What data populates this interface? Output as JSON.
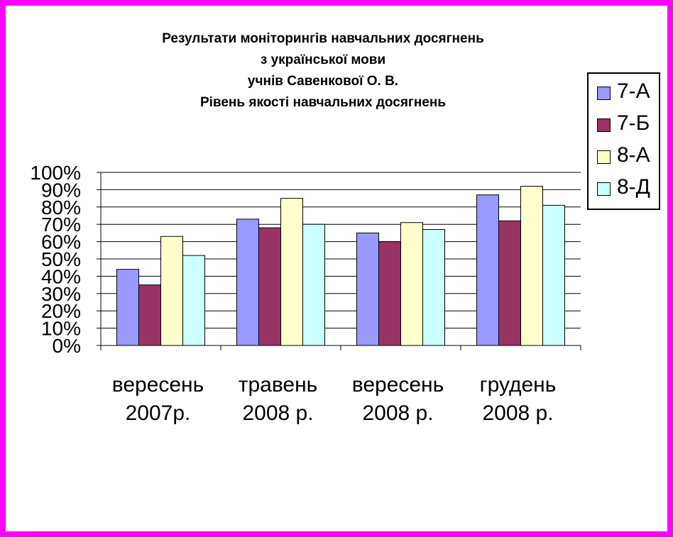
{
  "title_lines": [
    "Результати моніторингів навчальних досягнень",
    "з української мови",
    "учнів Савенкової О. В.",
    "Рівень якості навчальних досягнень"
  ],
  "chart_data": {
    "type": "bar",
    "title": "Результати моніторингів навчальних досягнень з української мови учнів Савенкової О. В. Рівень якості навчальних досягнень",
    "categories": [
      [
        "вересень",
        "2007р."
      ],
      [
        "травень",
        "2008 р."
      ],
      [
        "вересень",
        "2008 р."
      ],
      [
        "грудень",
        "2008 р."
      ]
    ],
    "series": [
      {
        "name": "7-А",
        "color": "#9999ff",
        "values": [
          44,
          73,
          65,
          87
        ]
      },
      {
        "name": "7-Б",
        "color": "#993366",
        "values": [
          35,
          68,
          60,
          72
        ]
      },
      {
        "name": "8-А",
        "color": "#ffffcc",
        "values": [
          63,
          85,
          71,
          92
        ]
      },
      {
        "name": "8-Д",
        "color": "#ccffff",
        "values": [
          52,
          70,
          67,
          81
        ]
      }
    ],
    "ylim": [
      0,
      100
    ],
    "yticks": [
      "0%",
      "10%",
      "20%",
      "30%",
      "40%",
      "50%",
      "60%",
      "70%",
      "80%",
      "90%",
      "100%"
    ],
    "grid": true,
    "legend_position": "top-right",
    "xlabel": "",
    "ylabel": ""
  },
  "frame_color": "#ff00ff"
}
